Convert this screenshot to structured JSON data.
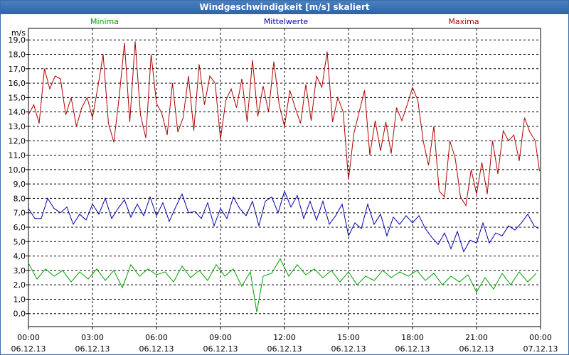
{
  "window": {
    "title": "Windgeschwindigkeit [m/s] skaliert"
  },
  "chart_data": {
    "type": "line",
    "title": "Windgeschwindigkeit [m/s] skaliert",
    "ylabel": "m/s",
    "xlabel": "",
    "ylim": [
      -0.9,
      19.8
    ],
    "yticks": [
      0,
      1,
      2,
      3,
      4,
      5,
      6,
      7,
      8,
      9,
      10,
      11,
      12,
      13,
      14,
      15,
      16,
      17,
      18,
      19
    ],
    "ytick_labels": [
      "0,0",
      "1,0",
      "2,0",
      "3,0",
      "4,0",
      "5,0",
      "6,0",
      "7,0",
      "8,0",
      "9,0",
      "10,0",
      "11,0",
      "12,0",
      "13,0",
      "14,0",
      "15,0",
      "16,0",
      "17,0",
      "18,0",
      "19,0"
    ],
    "xlim": [
      0,
      24
    ],
    "x_unit": "hours since 06.12.13 00:00",
    "xticks": [
      {
        "time": "00:00",
        "date": "06.12.13"
      },
      {
        "time": "03:00",
        "date": "06.12.13"
      },
      {
        "time": "06:00",
        "date": "06.12.13"
      },
      {
        "time": "09:00",
        "date": "06.12.13"
      },
      {
        "time": "12:00",
        "date": "06.12.13"
      },
      {
        "time": "15:00",
        "date": "06.12.13"
      },
      {
        "time": "18:00",
        "date": "06.12.13"
      },
      {
        "time": "21:00",
        "date": "06.12.13"
      },
      {
        "time": "00:00",
        "date": "07.12.13"
      }
    ],
    "grid": true,
    "legend_position": "top",
    "series": [
      {
        "name": "Minima",
        "color": "#00a000",
        "x": [
          0,
          0.4,
          0.8,
          1.2,
          1.6,
          2.0,
          2.4,
          2.8,
          3.2,
          3.6,
          4.0,
          4.4,
          4.8,
          5.2,
          5.6,
          6.0,
          6.4,
          6.8,
          7.2,
          7.6,
          8.0,
          8.4,
          8.8,
          9.2,
          9.6,
          10.0,
          10.4,
          10.7,
          11.0,
          11.4,
          11.8,
          12.2,
          12.6,
          13.0,
          13.4,
          13.8,
          14.2,
          14.6,
          15.0,
          15.4,
          15.8,
          16.2,
          16.6,
          17.0,
          17.4,
          17.8,
          18.2,
          18.6,
          19.0,
          19.4,
          19.8,
          20.2,
          20.6,
          21.0,
          21.4,
          21.8,
          22.2,
          22.6,
          23.0,
          23.4,
          23.8
        ],
        "values": [
          3.5,
          2.4,
          3.1,
          2.6,
          3.0,
          2.2,
          2.9,
          2.4,
          3.1,
          2.3,
          3.0,
          1.8,
          3.4,
          2.6,
          3.1,
          2.7,
          2.9,
          2.2,
          3.3,
          2.5,
          3.0,
          2.3,
          3.4,
          2.6,
          3.1,
          1.9,
          2.9,
          0.1,
          2.6,
          2.8,
          3.8,
          2.6,
          3.4,
          2.7,
          3.1,
          2.5,
          3.0,
          2.2,
          2.9,
          2.0,
          2.6,
          2.3,
          3.0,
          2.5,
          2.9,
          2.6,
          3.0,
          2.3,
          2.8,
          2.0,
          2.6,
          2.2,
          2.7,
          1.5,
          2.5,
          1.7,
          2.8,
          2.0,
          2.9,
          2.2,
          2.8
        ]
      },
      {
        "name": "Mittelwerte",
        "color": "#0000b0",
        "x": [
          0,
          0.3,
          0.6,
          0.9,
          1.2,
          1.5,
          1.8,
          2.1,
          2.4,
          2.7,
          3.0,
          3.3,
          3.6,
          3.9,
          4.2,
          4.5,
          4.8,
          5.1,
          5.4,
          5.7,
          6.0,
          6.3,
          6.6,
          6.9,
          7.2,
          7.5,
          7.8,
          8.1,
          8.4,
          8.7,
          9.0,
          9.3,
          9.6,
          9.9,
          10.2,
          10.5,
          10.8,
          11.1,
          11.4,
          11.7,
          12.0,
          12.3,
          12.6,
          12.9,
          13.2,
          13.5,
          13.8,
          14.1,
          14.4,
          14.7,
          15.0,
          15.3,
          15.6,
          15.9,
          16.2,
          16.5,
          16.8,
          17.1,
          17.4,
          17.7,
          18.0,
          18.3,
          18.6,
          18.9,
          19.2,
          19.5,
          19.8,
          20.1,
          20.4,
          20.7,
          21.0,
          21.3,
          21.6,
          21.9,
          22.2,
          22.5,
          22.8,
          23.1,
          23.4,
          23.7,
          23.9
        ],
        "values": [
          7.3,
          6.6,
          6.6,
          8.0,
          7.3,
          7.0,
          7.4,
          6.2,
          6.9,
          6.5,
          7.6,
          6.9,
          8.0,
          6.6,
          7.3,
          7.9,
          6.7,
          7.6,
          6.8,
          8.1,
          6.8,
          7.7,
          6.4,
          7.4,
          8.3,
          7.0,
          7.1,
          6.6,
          7.7,
          6.1,
          7.3,
          6.6,
          8.1,
          7.3,
          6.8,
          7.8,
          6.1,
          7.8,
          8.1,
          7.0,
          8.5,
          7.4,
          8.2,
          6.6,
          7.8,
          6.5,
          7.8,
          6.2,
          6.8,
          7.6,
          5.4,
          6.3,
          5.9,
          7.6,
          6.2,
          6.9,
          5.4,
          6.7,
          6.2,
          6.8,
          6.3,
          6.8,
          5.9,
          5.3,
          4.8,
          5.6,
          4.5,
          5.7,
          4.3,
          5.1,
          4.9,
          6.3,
          4.9,
          5.6,
          5.4,
          6.1,
          5.8,
          6.3,
          6.9,
          6.1,
          5.9
        ]
      },
      {
        "name": "Maxima",
        "color": "#b00000",
        "x": [
          0,
          0.25,
          0.5,
          0.75,
          1.0,
          1.25,
          1.5,
          1.75,
          2.0,
          2.25,
          2.5,
          2.75,
          3.0,
          3.25,
          3.5,
          3.75,
          4.0,
          4.25,
          4.5,
          4.75,
          5.0,
          5.25,
          5.5,
          5.75,
          6.0,
          6.25,
          6.5,
          6.75,
          7.0,
          7.25,
          7.5,
          7.75,
          8.0,
          8.25,
          8.5,
          8.75,
          9.0,
          9.25,
          9.5,
          9.75,
          10.0,
          10.25,
          10.5,
          10.75,
          11.0,
          11.25,
          11.5,
          11.75,
          12.0,
          12.25,
          12.5,
          12.75,
          13.0,
          13.25,
          13.5,
          13.75,
          14.0,
          14.25,
          14.5,
          14.75,
          15.0,
          15.25,
          15.5,
          15.75,
          16.0,
          16.25,
          16.5,
          16.75,
          17.0,
          17.25,
          17.5,
          17.75,
          18.0,
          18.25,
          18.5,
          18.75,
          19.0,
          19.25,
          19.5,
          19.75,
          20.0,
          20.25,
          20.5,
          20.75,
          21.0,
          21.25,
          21.5,
          21.75,
          22.0,
          22.25,
          22.5,
          22.75,
          23.0,
          23.25,
          23.5,
          23.75,
          23.95
        ],
        "values": [
          13.8,
          14.5,
          13.2,
          17.0,
          15.6,
          16.5,
          16.3,
          13.8,
          15.0,
          13.0,
          14.3,
          15.0,
          13.6,
          15.7,
          18.0,
          13.2,
          11.9,
          15.0,
          18.8,
          13.3,
          18.9,
          13.8,
          12.2,
          18.0,
          14.6,
          13.9,
          12.4,
          16.0,
          12.6,
          13.6,
          16.5,
          12.7,
          17.3,
          14.5,
          16.5,
          16.0,
          12.1,
          14.8,
          15.6,
          14.3,
          16.3,
          13.3,
          17.6,
          13.7,
          15.8,
          14.0,
          17.5,
          14.5,
          13.0,
          15.5,
          14.3,
          13.2,
          15.9,
          13.4,
          16.5,
          15.7,
          18.2,
          13.3,
          15.0,
          14.0,
          9.3,
          12.5,
          14.0,
          15.5,
          11.0,
          13.4,
          11.3,
          13.3,
          11.1,
          14.3,
          13.4,
          14.5,
          15.7,
          14.8,
          12.0,
          10.3,
          13.0,
          8.5,
          8.1,
          12.0,
          10.8,
          8.1,
          7.5,
          10.0,
          8.3,
          10.5,
          8.3,
          12.0,
          9.7,
          12.7,
          12.0,
          12.4,
          10.6,
          13.6,
          12.6,
          12.0,
          9.9
        ]
      }
    ]
  }
}
